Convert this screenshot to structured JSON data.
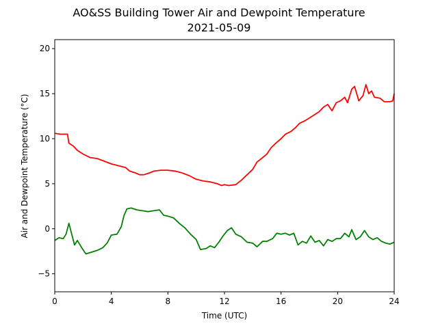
{
  "chart_data": {
    "type": "line",
    "title": "AO&SS Building Tower Air and Dewpoint Temperature",
    "subtitle": "2021-05-09",
    "xlabel": "Time (UTC)",
    "ylabel": "Air and Dewpoint Temperature (°C)",
    "xlim": [
      0,
      24
    ],
    "ylim": [
      -7,
      21
    ],
    "x_ticks": [
      0,
      4,
      8,
      12,
      16,
      20,
      24
    ],
    "y_ticks": [
      -5,
      0,
      5,
      10,
      15,
      20
    ],
    "grid": false,
    "legend": "none",
    "series": [
      {
        "color": "#ff0000",
        "points": [
          [
            0,
            10.6
          ],
          [
            0.4,
            10.5
          ],
          [
            0.9,
            10.5
          ],
          [
            1.0,
            9.5
          ],
          [
            1.3,
            9.2
          ],
          [
            1.6,
            8.7
          ],
          [
            2.0,
            8.3
          ],
          [
            2.5,
            7.9
          ],
          [
            3.0,
            7.8
          ],
          [
            3.5,
            7.5
          ],
          [
            4.0,
            7.2
          ],
          [
            4.5,
            7.0
          ],
          [
            5.0,
            6.8
          ],
          [
            5.3,
            6.4
          ],
          [
            5.7,
            6.2
          ],
          [
            6.0,
            6.0
          ],
          [
            6.3,
            6.0
          ],
          [
            6.7,
            6.2
          ],
          [
            7.0,
            6.4
          ],
          [
            7.5,
            6.5
          ],
          [
            8.0,
            6.5
          ],
          [
            8.5,
            6.4
          ],
          [
            9.0,
            6.2
          ],
          [
            9.5,
            5.9
          ],
          [
            10.0,
            5.5
          ],
          [
            10.5,
            5.3
          ],
          [
            11.0,
            5.2
          ],
          [
            11.5,
            5.0
          ],
          [
            11.8,
            4.8
          ],
          [
            12.0,
            4.9
          ],
          [
            12.3,
            4.8
          ],
          [
            12.8,
            4.9
          ],
          [
            13.2,
            5.4
          ],
          [
            13.6,
            6.0
          ],
          [
            14.0,
            6.6
          ],
          [
            14.3,
            7.4
          ],
          [
            14.7,
            7.9
          ],
          [
            15.0,
            8.3
          ],
          [
            15.3,
            9.0
          ],
          [
            15.7,
            9.6
          ],
          [
            16.0,
            10.0
          ],
          [
            16.3,
            10.5
          ],
          [
            16.7,
            10.8
          ],
          [
            17.0,
            11.2
          ],
          [
            17.3,
            11.7
          ],
          [
            17.7,
            12.0
          ],
          [
            18.0,
            12.3
          ],
          [
            18.3,
            12.6
          ],
          [
            18.7,
            13.0
          ],
          [
            19.0,
            13.5
          ],
          [
            19.3,
            13.8
          ],
          [
            19.6,
            13.1
          ],
          [
            19.9,
            14.0
          ],
          [
            20.2,
            14.2
          ],
          [
            20.5,
            14.6
          ],
          [
            20.7,
            14.0
          ],
          [
            21.0,
            15.5
          ],
          [
            21.2,
            15.8
          ],
          [
            21.5,
            14.2
          ],
          [
            21.8,
            14.8
          ],
          [
            22.0,
            16.0
          ],
          [
            22.2,
            15.0
          ],
          [
            22.4,
            15.3
          ],
          [
            22.6,
            14.6
          ],
          [
            23.0,
            14.5
          ],
          [
            23.3,
            14.1
          ],
          [
            23.7,
            14.1
          ],
          [
            23.9,
            14.2
          ],
          [
            24.0,
            15.0
          ]
        ]
      },
      {
        "color": "#008000",
        "points": [
          [
            0,
            -1.3
          ],
          [
            0.3,
            -1.0
          ],
          [
            0.6,
            -1.1
          ],
          [
            0.8,
            -0.6
          ],
          [
            1.0,
            0.6
          ],
          [
            1.2,
            -0.6
          ],
          [
            1.4,
            -1.8
          ],
          [
            1.6,
            -1.3
          ],
          [
            1.9,
            -2.1
          ],
          [
            2.2,
            -2.8
          ],
          [
            2.6,
            -2.6
          ],
          [
            3.0,
            -2.4
          ],
          [
            3.4,
            -2.1
          ],
          [
            3.7,
            -1.6
          ],
          [
            4.0,
            -0.7
          ],
          [
            4.4,
            -0.6
          ],
          [
            4.7,
            0.2
          ],
          [
            4.9,
            1.5
          ],
          [
            5.1,
            2.2
          ],
          [
            5.4,
            2.3
          ],
          [
            5.8,
            2.1
          ],
          [
            6.2,
            2.0
          ],
          [
            6.6,
            1.9
          ],
          [
            7.0,
            2.0
          ],
          [
            7.4,
            2.1
          ],
          [
            7.7,
            1.5
          ],
          [
            8.0,
            1.4
          ],
          [
            8.4,
            1.2
          ],
          [
            8.8,
            0.6
          ],
          [
            9.2,
            0.1
          ],
          [
            9.6,
            -0.6
          ],
          [
            10.0,
            -1.2
          ],
          [
            10.3,
            -2.3
          ],
          [
            10.7,
            -2.2
          ],
          [
            11.0,
            -1.9
          ],
          [
            11.3,
            -2.1
          ],
          [
            11.6,
            -1.5
          ],
          [
            11.9,
            -0.8
          ],
          [
            12.2,
            -0.2
          ],
          [
            12.5,
            0.1
          ],
          [
            12.8,
            -0.6
          ],
          [
            13.2,
            -0.9
          ],
          [
            13.6,
            -1.5
          ],
          [
            14.0,
            -1.6
          ],
          [
            14.3,
            -2.0
          ],
          [
            14.7,
            -1.4
          ],
          [
            15.0,
            -1.4
          ],
          [
            15.4,
            -1.1
          ],
          [
            15.7,
            -0.5
          ],
          [
            16.0,
            -0.6
          ],
          [
            16.3,
            -0.5
          ],
          [
            16.6,
            -0.7
          ],
          [
            16.9,
            -0.5
          ],
          [
            17.2,
            -1.8
          ],
          [
            17.5,
            -1.4
          ],
          [
            17.8,
            -1.6
          ],
          [
            18.1,
            -0.8
          ],
          [
            18.4,
            -1.5
          ],
          [
            18.7,
            -1.3
          ],
          [
            19.0,
            -1.9
          ],
          [
            19.3,
            -1.2
          ],
          [
            19.6,
            -1.4
          ],
          [
            19.9,
            -1.1
          ],
          [
            20.2,
            -1.1
          ],
          [
            20.5,
            -0.5
          ],
          [
            20.8,
            -0.9
          ],
          [
            21.0,
            -0.1
          ],
          [
            21.3,
            -1.2
          ],
          [
            21.6,
            -0.9
          ],
          [
            21.9,
            -0.2
          ],
          [
            22.2,
            -0.9
          ],
          [
            22.5,
            -1.2
          ],
          [
            22.8,
            -1.0
          ],
          [
            23.1,
            -1.4
          ],
          [
            23.4,
            -1.6
          ],
          [
            23.7,
            -1.7
          ],
          [
            24.0,
            -1.5
          ]
        ]
      }
    ]
  }
}
